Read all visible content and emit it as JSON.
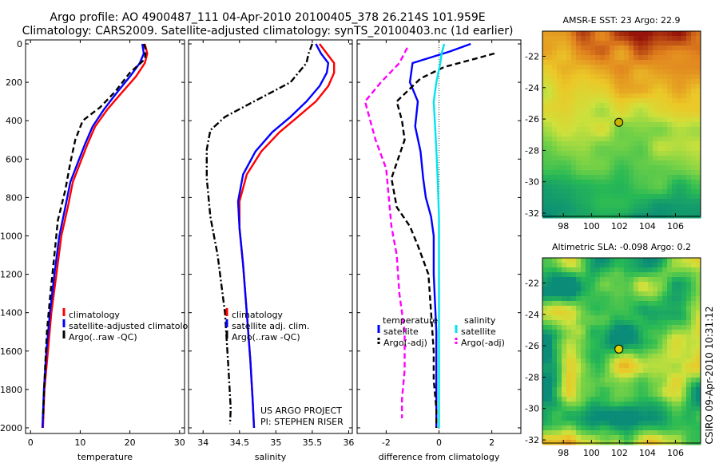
{
  "header": {
    "line1": "Argo profile: AO 4900487_111 04-Apr-2010 20100405_378 26.214S 101.959E",
    "line2": "Climatology: CARS2009. Satellite-adjusted climatology: synTS_20100403.nc (1d earlier)"
  },
  "side_label": "CSIRO 09-Apr-2010 10:31:12",
  "chart_data": [
    {
      "type": "line",
      "xlabel": "temperature",
      "ylabel": "",
      "xlim": [
        -1,
        31
      ],
      "ylim": [
        2050,
        0
      ],
      "xticks": [
        0,
        10,
        20,
        30
      ],
      "yticks": [
        0,
        200,
        400,
        600,
        800,
        1000,
        1200,
        1400,
        1600,
        1800,
        2000
      ],
      "legend": [
        "climatology",
        "satellite-adjusted climatology",
        "Argo(..raw -QC)"
      ],
      "series": [
        {
          "name": "climatology",
          "color": "#ff0000",
          "dash": "solid",
          "x": [
            23.0,
            23.5,
            23.0,
            21.2,
            18.5,
            15.5,
            13.0,
            11.5,
            10.0,
            8.5,
            7.5,
            6.2,
            5.2,
            4.2,
            3.5,
            2.8,
            2.5
          ],
          "y": [
            0,
            50,
            100,
            170,
            250,
            340,
            430,
            520,
            620,
            720,
            850,
            1000,
            1200,
            1400,
            1600,
            1800,
            2000
          ]
        },
        {
          "name": "satellite-adjusted climatology",
          "color": "#0000ff",
          "dash": "solid",
          "x": [
            22.5,
            22.8,
            22.0,
            20.0,
            17.5,
            14.8,
            12.5,
            11.0,
            9.5,
            8.0,
            7.0,
            5.8,
            4.8,
            3.9,
            3.2,
            2.7,
            2.4
          ],
          "y": [
            0,
            50,
            100,
            170,
            250,
            340,
            430,
            520,
            620,
            720,
            850,
            1000,
            1200,
            1400,
            1600,
            1800,
            2000
          ]
        },
        {
          "name": "Argo(..raw -QC)",
          "color": "#000000",
          "dash": "dash",
          "x": [
            22.8,
            23.2,
            23.0,
            20.0,
            17.0,
            14.0,
            10.5,
            9.0,
            8.0,
            7.0,
            5.5,
            4.8,
            4.0,
            3.3,
            2.9,
            2.5
          ],
          "y": [
            0,
            30,
            80,
            150,
            250,
            330,
            400,
            500,
            620,
            760,
            920,
            1100,
            1300,
            1500,
            1700,
            1950
          ]
        }
      ]
    },
    {
      "type": "line",
      "xlabel": "salinity",
      "ylabel": "",
      "xlim": [
        33.8,
        36.05
      ],
      "ylim": [
        2050,
        0
      ],
      "xticks": [
        34,
        34.5,
        35,
        35.5,
        36
      ],
      "legend": [
        "climatology",
        "satellite adj. clim.",
        "Argo(..raw -QC)"
      ],
      "annotation": [
        "US ARGO PROJECT",
        "PI: STEPHEN RISER"
      ],
      "series": [
        {
          "name": "climatology",
          "color": "#ff0000",
          "dash": "solid",
          "x": [
            35.6,
            35.7,
            35.8,
            35.8,
            35.72,
            35.55,
            35.3,
            35.05,
            34.8,
            34.6,
            34.5,
            34.5,
            34.55,
            34.6,
            34.65,
            34.68,
            34.7
          ],
          "y": [
            0,
            50,
            100,
            150,
            220,
            300,
            380,
            460,
            560,
            680,
            820,
            960,
            1150,
            1400,
            1650,
            1850,
            2000
          ]
        },
        {
          "name": "satellite adj. clim.",
          "color": "#0000ff",
          "dash": "solid",
          "x": [
            35.55,
            35.62,
            35.72,
            35.7,
            35.6,
            35.42,
            35.2,
            34.95,
            34.72,
            34.55,
            34.48,
            34.5,
            34.55,
            34.6,
            34.65,
            34.68,
            34.7
          ],
          "y": [
            0,
            50,
            100,
            150,
            220,
            300,
            380,
            460,
            560,
            680,
            820,
            960,
            1150,
            1400,
            1650,
            1850,
            2000
          ]
        },
        {
          "name": "Argo(..raw -QC)",
          "color": "#000000",
          "dash": "dashdot",
          "x": [
            35.5,
            35.45,
            35.42,
            35.2,
            34.7,
            34.3,
            34.1,
            34.05,
            34.05,
            34.1,
            34.2,
            34.3,
            34.35,
            34.38,
            34.37
          ],
          "y": [
            0,
            50,
            100,
            200,
            300,
            380,
            450,
            550,
            700,
            900,
            1100,
            1400,
            1700,
            1900,
            1980
          ]
        }
      ]
    },
    {
      "type": "line",
      "xlabel": "difference from climatology",
      "ylabel": "",
      "xlim": [
        -3.1,
        3.1
      ],
      "ylim": [
        2050,
        0
      ],
      "xticks": [
        -2,
        0,
        2
      ],
      "legend_groups": [
        {
          "title": "temperature",
          "entries": [
            "satellite",
            "Argo(-adj)"
          ]
        },
        {
          "title": "salinity",
          "entries": [
            "satellite",
            "Argo(-adj)"
          ]
        }
      ],
      "series": [
        {
          "name": "temperature satellite",
          "color": "#0000ff",
          "dash": "solid",
          "x": [
            1.2,
            0.4,
            -1.0,
            -1.1,
            -0.8,
            -0.9,
            -0.7,
            -0.6,
            -0.5,
            -0.3,
            -0.2,
            -0.2,
            -0.1,
            -0.1,
            -0.1
          ],
          "y": [
            0,
            40,
            100,
            200,
            300,
            430,
            560,
            700,
            800,
            900,
            1000,
            1200,
            1500,
            1800,
            2000
          ]
        },
        {
          "name": "temperature Argo(-adj)",
          "color": "#000000",
          "dash": "dash",
          "x": [
            2.1,
            1.3,
            0.2,
            -0.7,
            -1.6,
            -1.4,
            -1.3,
            -1.8,
            -1.6,
            -1.1,
            -0.8,
            -0.4,
            -0.3,
            -0.2,
            -0.2,
            -0.1,
            -0.1
          ],
          "y": [
            50,
            80,
            120,
            180,
            300,
            400,
            500,
            700,
            850,
            950,
            1050,
            1200,
            1400,
            1600,
            1750,
            1900,
            2000
          ]
        },
        {
          "name": "salinity satellite",
          "color": "#00e5ee",
          "dash": "solid",
          "x": [
            0.2,
            0.1,
            0.05,
            -0.1,
            -0.2,
            -0.15,
            -0.1,
            -0.05,
            0.0,
            0.0,
            0.0,
            0.0,
            0.0,
            0.0
          ],
          "y": [
            0,
            50,
            100,
            200,
            300,
            420,
            550,
            700,
            900,
            1100,
            1400,
            1700,
            1900,
            2000
          ]
        },
        {
          "name": "salinity Argo(-adj)",
          "color": "#ff00ff",
          "dash": "dash",
          "x": [
            -1.2,
            -1.5,
            -2.2,
            -2.8,
            -2.6,
            -2.4,
            -2.0,
            -1.9,
            -1.8,
            -1.6,
            -1.5,
            -1.3,
            -1.3,
            -1.4,
            -1.4
          ],
          "y": [
            20,
            100,
            200,
            300,
            400,
            500,
            650,
            800,
            950,
            1100,
            1300,
            1500,
            1700,
            1850,
            1950
          ]
        }
      ]
    },
    {
      "type": "heatmap",
      "title": "AMSR-E SST: 23 Argo: 22.9",
      "xticks": [
        98,
        100,
        102,
        104,
        106
      ],
      "yticks": [
        -22,
        -24,
        -26,
        -28,
        -30,
        -32
      ],
      "xlim": [
        96.5,
        107.8
      ],
      "ylim": [
        -32.2,
        -20.4
      ],
      "marker": {
        "lon": 101.959,
        "lat": -26.214,
        "color": "#c8b400"
      }
    },
    {
      "type": "heatmap",
      "title": "Altimetric SLA: -0.098 Argo: 0.2",
      "xticks": [
        98,
        100,
        102,
        104,
        106
      ],
      "yticks": [
        -22,
        -24,
        -26,
        -28,
        -30,
        -32
      ],
      "xlim": [
        96.5,
        107.8
      ],
      "ylim": [
        -32.2,
        -20.4
      ],
      "marker": {
        "lon": 101.959,
        "lat": -26.214,
        "color": "#e3d100"
      }
    }
  ]
}
